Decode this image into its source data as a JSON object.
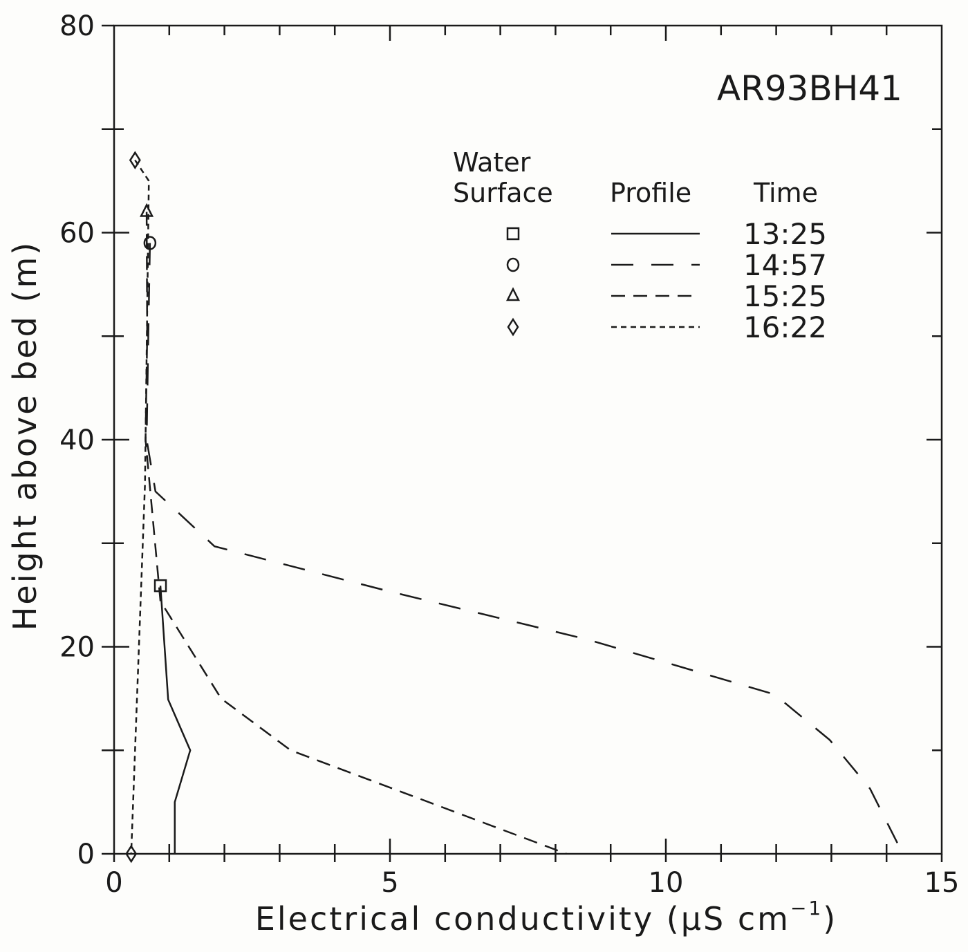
{
  "chart_data": {
    "type": "line",
    "title": "AR93BH41",
    "xlabel": "Electrical conductivity (µS cm",
    "xlabel_sup": "−1",
    "xlabel_close": ")",
    "ylabel": "Height above bed (m)",
    "xlim": [
      0,
      15
    ],
    "ylim": [
      0,
      80
    ],
    "xticks": [
      0,
      5,
      10,
      15
    ],
    "yticks": [
      0,
      20,
      40,
      60,
      80
    ],
    "grid": false,
    "legend": {
      "placement": "top-right",
      "headers": [
        "Water",
        "Surface",
        "Profile",
        "Time"
      ]
    },
    "series": [
      {
        "name": "13:25",
        "marker": "square",
        "dash": "solid",
        "x": [
          0.84,
          0.98,
          1.38,
          1.1,
          1.1
        ],
        "y": [
          25.9,
          14.9,
          10,
          5,
          0
        ],
        "water_surface": [
          0.84,
          25.9
        ]
      },
      {
        "name": "14:57",
        "marker": "circle",
        "dash": "long-dash",
        "x": [
          0.65,
          0.62,
          0.59,
          0.75,
          1.82,
          4.95,
          8.58,
          11.97,
          12.97,
          13.7,
          14.2
        ],
        "y": [
          59,
          50,
          40,
          35,
          29.7,
          25.4,
          20.7,
          15.4,
          11,
          6.3,
          1
        ],
        "water_surface": [
          0.65,
          59
        ]
      },
      {
        "name": "15:25",
        "marker": "triangle",
        "dash": "dash",
        "x": [
          0.59,
          0.6,
          0.57,
          0.84,
          1.94,
          3.2,
          8.2
        ],
        "y": [
          62,
          50,
          40,
          24.4,
          15,
          10,
          0
        ],
        "water_surface": [
          0.59,
          62
        ]
      },
      {
        "name": "16:22",
        "marker": "diamond",
        "dash": "short-dash",
        "x": [
          0.38,
          0.63,
          0.56,
          0.31
        ],
        "y": [
          67,
          65,
          35.7,
          0
        ],
        "water_surface": [
          0.38,
          67
        ]
      }
    ]
  }
}
